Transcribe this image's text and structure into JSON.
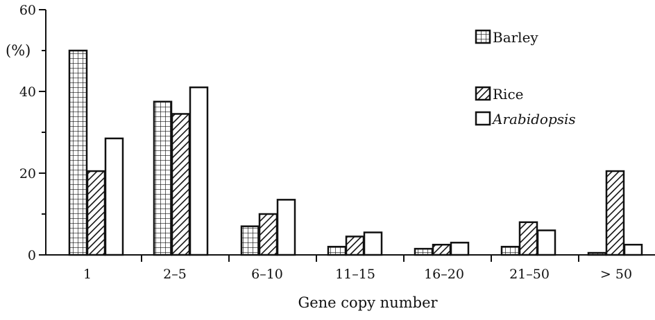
{
  "chart_data": {
    "type": "bar",
    "title": "",
    "xlabel": "Gene copy number",
    "ylabel": "(%)",
    "categories": [
      "1",
      "2–5",
      "6–10",
      "11–15",
      "16–20",
      "21–50",
      "> 50"
    ],
    "ylim": [
      0,
      60
    ],
    "yticks": [
      0,
      20,
      40,
      60
    ],
    "series": [
      {
        "name": "Barley",
        "pattern": "grid",
        "values": [
          50,
          37.5,
          7,
          2,
          1.5,
          2,
          0.5
        ]
      },
      {
        "name": "Rice",
        "pattern": "hatch",
        "values": [
          20.5,
          34.5,
          10,
          4.5,
          2.5,
          8,
          20.5
        ]
      },
      {
        "name": "Arabidopsis",
        "pattern": "open",
        "values": [
          28.5,
          41,
          13.5,
          5.5,
          3,
          6,
          2.5
        ]
      }
    ],
    "grid": false,
    "legend": {
      "position": "top-right",
      "italic_entries": [
        "Arabidopsis"
      ]
    },
    "colors": {
      "ink": "#111111",
      "fill": "#ffffff"
    }
  }
}
